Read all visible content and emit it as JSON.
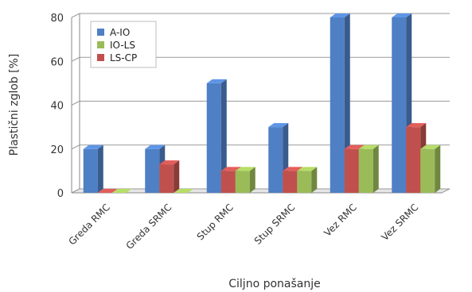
{
  "chart_data": {
    "type": "bar",
    "categories": [
      "Greda RMC",
      "Greda SRMC",
      "Stup RMC",
      "Stup SRMC",
      "Vez RMC",
      "Vez SRMC"
    ],
    "series": [
      {
        "name": "A-IO",
        "values": [
          20,
          20,
          50,
          30,
          80,
          80
        ]
      },
      {
        "name": "IO-LS",
        "values": [
          0,
          0,
          10,
          10,
          20,
          20
        ]
      },
      {
        "name": "LS-CP",
        "values": [
          0,
          13,
          10,
          10,
          20,
          30
        ]
      }
    ],
    "series_order": [
      "A-IO",
      "LS-CP",
      "IO-LS"
    ],
    "colors": {
      "A-IO": "#4f7fc4",
      "IO-LS": "#9bbb59",
      "LS-CP": "#c0504d"
    },
    "xlabel": "Ciljno ponašanje",
    "ylabel": "Plastični zglob [%]",
    "ylim": [
      0,
      80
    ],
    "yticks": [
      0,
      20,
      40,
      60,
      80
    ],
    "grid": true,
    "legend_position": "top-left",
    "style": "3d-column"
  }
}
